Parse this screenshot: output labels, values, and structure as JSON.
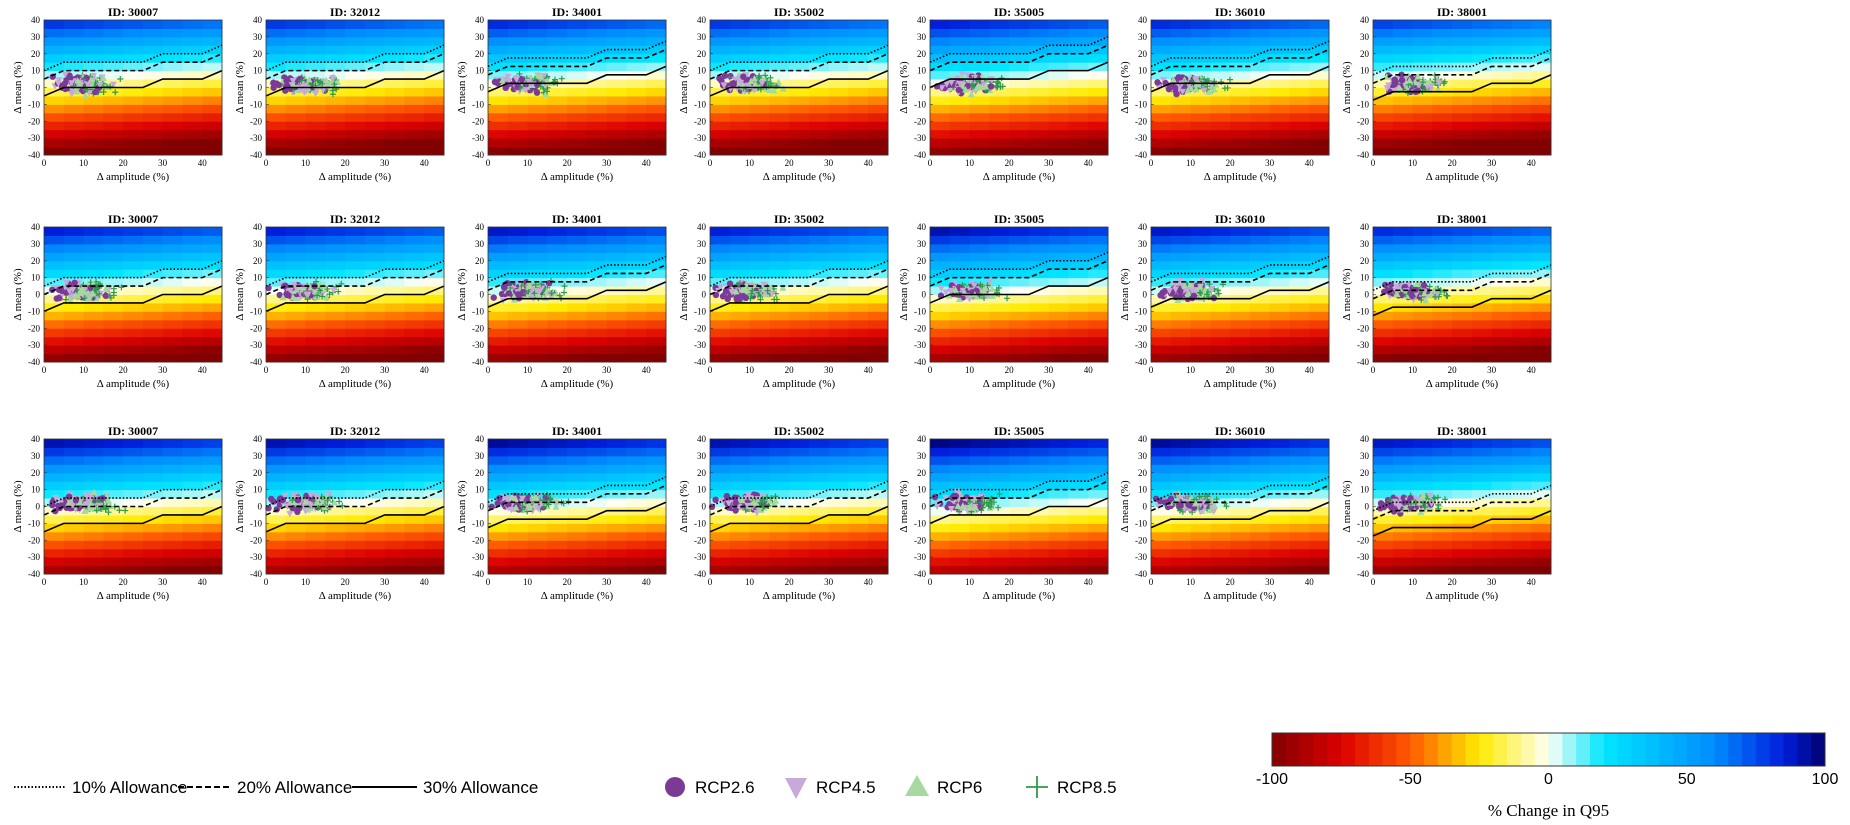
{
  "chart_data": {
    "type": "heatmap",
    "rows": 3,
    "cols": 7,
    "panels": [
      {
        "title": "ID: 30007",
        "row": 0,
        "stations": "30007"
      },
      {
        "title": "ID: 32012",
        "row": 0,
        "stations": "32012"
      },
      {
        "title": "ID: 34001",
        "row": 0,
        "stations": "34001"
      },
      {
        "title": "ID: 35002",
        "row": 0,
        "stations": "35002"
      },
      {
        "title": "ID: 35005",
        "row": 0,
        "stations": "35005"
      },
      {
        "title": "ID: 36010",
        "row": 0,
        "stations": "36010"
      },
      {
        "title": "ID: 38001",
        "row": 0,
        "stations": "38001"
      },
      {
        "title": "ID: 30007",
        "row": 1,
        "stations": "30007"
      },
      {
        "title": "ID: 32012",
        "row": 1,
        "stations": "32012"
      },
      {
        "title": "ID: 34001",
        "row": 1,
        "stations": "34001"
      },
      {
        "title": "ID: 35002",
        "row": 1,
        "stations": "35002"
      },
      {
        "title": "ID: 35005",
        "row": 1,
        "stations": "35005"
      },
      {
        "title": "ID: 36010",
        "row": 1,
        "stations": "36010"
      },
      {
        "title": "ID: 38001",
        "row": 1,
        "stations": "38001"
      },
      {
        "title": "ID: 30007",
        "row": 2,
        "stations": "30007"
      },
      {
        "title": "ID: 32012",
        "row": 2,
        "stations": "32012"
      },
      {
        "title": "ID: 34001",
        "row": 2,
        "stations": "34001"
      },
      {
        "title": "ID: 35002",
        "row": 2,
        "stations": "35002"
      },
      {
        "title": "ID: 35005",
        "row": 2,
        "stations": "35005"
      },
      {
        "title": "ID: 36010",
        "row": 2,
        "stations": "36010"
      },
      {
        "title": "ID: 38001",
        "row": 2,
        "stations": "38001"
      }
    ],
    "xlabel": "Δ amplitude (%)",
    "ylabel": "Δ mean (%)",
    "xlim": [
      0,
      45
    ],
    "ylim": [
      -40,
      40
    ],
    "xticks": [
      0,
      10,
      20,
      30,
      40
    ],
    "yticks": [
      40,
      30,
      20,
      10,
      0,
      -10,
      -20,
      -30,
      -40
    ],
    "grid": false,
    "allowance_lines": [
      {
        "name": "10% Allowance",
        "style": "dotted"
      },
      {
        "name": "20% Allowance",
        "style": "dashed"
      },
      {
        "name": "30% Allowance",
        "style": "solid"
      }
    ],
    "scenarios": [
      {
        "name": "RCP2.6",
        "marker": "circle",
        "color": "#7b3a96"
      },
      {
        "name": "RCP4.5",
        "marker": "triangle-down",
        "color": "#c9a9d9"
      },
      {
        "name": "RCP6",
        "marker": "triangle-up",
        "color": "#a6d9a0"
      },
      {
        "name": "RCP8.5",
        "marker": "plus",
        "color": "#2e9a4e"
      }
    ],
    "colorbar": {
      "label": "% Change in Q95",
      "ticks": [
        -100,
        -50,
        0,
        50,
        100
      ],
      "range": [
        -100,
        100
      ]
    }
  }
}
